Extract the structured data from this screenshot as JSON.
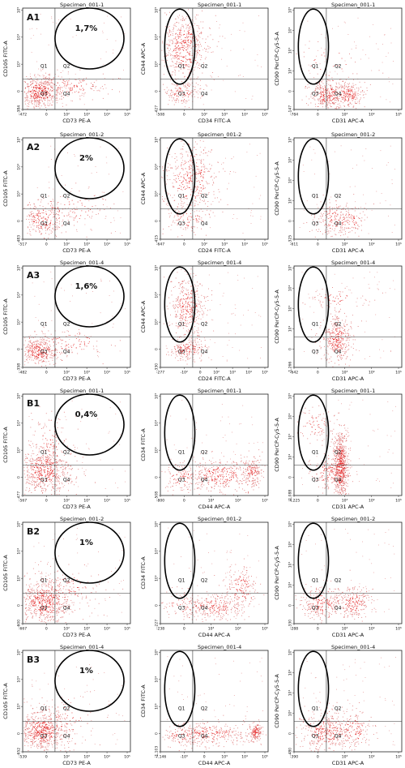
{
  "figure": {
    "row_labels": [
      "A1",
      "A2",
      "A3",
      "B1",
      "B2",
      "B3"
    ],
    "percents": [
      "1,7%",
      "2%",
      "1,6%",
      "0,4%",
      "1%",
      "1%"
    ]
  },
  "chart_data": [
    {
      "type": "scatter",
      "row": "A1",
      "col": 1,
      "title": "Specimen_001-1",
      "xlabel": "CD73 PE-A",
      "ylabel": "CD105 FITC-A",
      "quadrants": [
        "Q1",
        "Q2",
        "Q3",
        "Q4"
      ],
      "percent_label": "1,7%",
      "xticks": [
        "-472",
        "0",
        "10²",
        "10³",
        "10⁴",
        "10⁵"
      ],
      "yticks": [
        "-384",
        "0",
        "10³",
        "10⁴",
        "10⁵"
      ],
      "gate": "ellipse-upper-right",
      "populations": [
        {
          "x": 0.15,
          "y": 0.18,
          "sx": 0.1,
          "sy": 0.08,
          "n": 520
        },
        {
          "x": 0.45,
          "y": 0.23,
          "sx": 0.18,
          "sy": 0.06,
          "n": 140
        }
      ]
    },
    {
      "type": "scatter",
      "row": "A1",
      "col": 2,
      "title": "Specimen_001-1",
      "xlabel": "CD34 FITC-A",
      "ylabel": "CD44 APC-A",
      "quadrants": [
        "Q1",
        "Q2",
        "Q3",
        "Q4"
      ],
      "xticks": [
        "-508",
        "0",
        "10²",
        "10³",
        "10⁴",
        "10⁵"
      ],
      "yticks": [
        "-427",
        "0",
        "10³",
        "10⁴",
        "10⁵"
      ],
      "gate": "ellipse-upper-left",
      "populations": [
        {
          "x": 0.22,
          "y": 0.62,
          "sx": 0.11,
          "sy": 0.18,
          "n": 540
        },
        {
          "x": 0.2,
          "y": 0.16,
          "sx": 0.08,
          "sy": 0.06,
          "n": 140
        }
      ]
    },
    {
      "type": "scatter",
      "row": "A1",
      "col": 3,
      "title": "Specimen_001-1",
      "xlabel": "CD31 APC-A",
      "ylabel": "CD90 PerCP-Cy5-5-A",
      "quadrants": [
        "Q1",
        "Q2",
        "Q3",
        "Q4"
      ],
      "xticks": [
        "-784",
        "0",
        "10³",
        "10⁴",
        "10⁵"
      ],
      "yticks": [
        "-147",
        "0",
        "10²",
        "10³",
        "10⁴",
        "10⁵"
      ],
      "gate": "ellipse-upper-left",
      "populations": [
        {
          "x": 0.3,
          "y": 0.15,
          "sx": 0.08,
          "sy": 0.07,
          "n": 300
        },
        {
          "x": 0.5,
          "y": 0.15,
          "sx": 0.07,
          "sy": 0.07,
          "n": 220
        },
        {
          "x": 0.35,
          "y": 0.45,
          "sx": 0.18,
          "sy": 0.14,
          "n": 45
        }
      ]
    },
    {
      "type": "scatter",
      "row": "A2",
      "col": 1,
      "title": "Specimen_001-2",
      "xlabel": "CD73 PE-A",
      "ylabel": "CD105 FITC-A",
      "quadrants": [
        "Q1",
        "Q2",
        "Q3",
        "Q4"
      ],
      "percent_label": "2%",
      "xticks": [
        "-517",
        "0",
        "10²",
        "10³",
        "10⁴",
        "10⁵"
      ],
      "yticks": [
        "-483",
        "0",
        "10³",
        "10⁴",
        "10⁵"
      ],
      "gate": "ellipse-upper-right",
      "populations": [
        {
          "x": 0.2,
          "y": 0.2,
          "sx": 0.11,
          "sy": 0.09,
          "n": 260
        },
        {
          "x": 0.45,
          "y": 0.3,
          "sx": 0.2,
          "sy": 0.12,
          "n": 110
        }
      ]
    },
    {
      "type": "scatter",
      "row": "A2",
      "col": 2,
      "title": "Specimen_001-2",
      "xlabel": "CD24 FITC-A",
      "ylabel": "CD44 APC-A",
      "quadrants": [
        "Q1",
        "Q2",
        "Q3",
        "Q4"
      ],
      "xticks": [
        "-647",
        "0",
        "10²",
        "10³",
        "10⁴",
        "10⁵"
      ],
      "yticks": [
        "-415",
        "0",
        "10³",
        "10⁴",
        "10⁵"
      ],
      "gate": "ellipse-upper-left",
      "populations": [
        {
          "x": 0.28,
          "y": 0.6,
          "sx": 0.14,
          "sy": 0.2,
          "n": 420
        },
        {
          "x": 0.25,
          "y": 0.2,
          "sx": 0.1,
          "sy": 0.08,
          "n": 90
        }
      ]
    },
    {
      "type": "scatter",
      "row": "A2",
      "col": 3,
      "title": "Specimen_001-2",
      "xlabel": "CD31 APC-A",
      "ylabel": "CD90 PerCP-Cy5-5-A",
      "quadrants": [
        "Q1",
        "Q2",
        "Q3",
        "Q4"
      ],
      "xticks": [
        "-611",
        "0",
        "10³",
        "10⁴",
        "10⁵"
      ],
      "yticks": [
        "-325",
        "0",
        "10²",
        "10³",
        "10⁴",
        "10⁵"
      ],
      "gate": "ellipse-upper-left",
      "populations": [
        {
          "x": 0.35,
          "y": 0.2,
          "sx": 0.09,
          "sy": 0.09,
          "n": 150
        },
        {
          "x": 0.5,
          "y": 0.18,
          "sx": 0.08,
          "sy": 0.08,
          "n": 120
        }
      ]
    },
    {
      "type": "scatter",
      "row": "A3",
      "col": 1,
      "title": "Specimen_001-4",
      "xlabel": "CD73 PE-A",
      "ylabel": "CD105 FITC-A",
      "quadrants": [
        "Q1",
        "Q2",
        "Q3",
        "Q4"
      ],
      "percent_label": "1,6%",
      "xticks": [
        "-482",
        "0",
        "10²",
        "10³",
        "10⁴",
        "10⁵"
      ],
      "yticks": [
        "-358",
        "0",
        "10³",
        "10⁴",
        "10⁵"
      ],
      "gate": "ellipse-upper-right",
      "populations": [
        {
          "x": 0.15,
          "y": 0.17,
          "sx": 0.1,
          "sy": 0.07,
          "n": 380
        },
        {
          "x": 0.45,
          "y": 0.25,
          "sx": 0.2,
          "sy": 0.08,
          "n": 100
        }
      ]
    },
    {
      "type": "scatter",
      "row": "A3",
      "col": 2,
      "title": "Specimen_001-4",
      "xlabel": "CD24 FITC-A",
      "ylabel": "CD44 APC-A",
      "quadrants": [
        "Q1",
        "Q2",
        "Q3",
        "Q4"
      ],
      "xticks": [
        "-277",
        "-10²",
        "0",
        "10²",
        "10³",
        "10⁴",
        "10⁵"
      ],
      "yticks": [
        "-330",
        "0",
        "10³",
        "10⁴",
        "10⁵"
      ],
      "gate": "ellipse-upper-left",
      "populations": [
        {
          "x": 0.25,
          "y": 0.6,
          "sx": 0.09,
          "sy": 0.16,
          "n": 380
        },
        {
          "x": 0.25,
          "y": 0.18,
          "sx": 0.08,
          "sy": 0.06,
          "n": 200
        }
      ]
    },
    {
      "type": "scatter",
      "row": "A3",
      "col": 3,
      "title": "Specimen_001-4",
      "xlabel": "CD31 APC-A",
      "ylabel": "CD90 PerCP-Cy5-5-A",
      "quadrants": [
        "Q1",
        "Q2",
        "Q3",
        "Q4"
      ],
      "xticks": [
        "-642",
        "0",
        "10³",
        "10⁴",
        "10⁵"
      ],
      "yticks": [
        "-1,266",
        "0",
        "10²",
        "10³",
        "10⁴",
        "10⁵"
      ],
      "gate": "ellipse-upper-left",
      "populations": [
        {
          "x": 0.4,
          "y": 0.28,
          "sx": 0.07,
          "sy": 0.12,
          "n": 360
        },
        {
          "x": 0.4,
          "y": 0.68,
          "sx": 0.15,
          "sy": 0.05,
          "n": 70
        }
      ]
    },
    {
      "type": "scatter",
      "row": "B1",
      "col": 1,
      "title": "Specimen_001-1",
      "xlabel": "CD73 PE-A",
      "ylabel": "CD105 FITC-A",
      "quadrants": [
        "Q1",
        "Q2",
        "Q3",
        "Q4"
      ],
      "percent_label": "0,4%",
      "xticks": [
        "-567",
        "0",
        "10²",
        "10³",
        "10⁴",
        "10⁵"
      ],
      "yticks": [
        "-477",
        "0",
        "10³",
        "10⁴",
        "10⁵"
      ],
      "gate": "ellipse-upper-right",
      "populations": [
        {
          "x": 0.2,
          "y": 0.25,
          "sx": 0.13,
          "sy": 0.12,
          "n": 600
        },
        {
          "x": 0.25,
          "y": 0.5,
          "sx": 0.1,
          "sy": 0.15,
          "n": 100
        }
      ]
    },
    {
      "type": "scatter",
      "row": "B1",
      "col": 2,
      "title": "Specimen_001-1",
      "xlabel": "CD44 APC-A",
      "ylabel": "CD34 FITC-A",
      "quadrants": [
        "Q1",
        "Q2",
        "Q3",
        "Q4"
      ],
      "xticks": [
        "-800",
        "0",
        "10³",
        "10⁴",
        "10⁵"
      ],
      "yticks": [
        "-508",
        "0",
        "10³",
        "10⁴",
        "10⁵"
      ],
      "gate": "ellipse-upper-left",
      "populations": [
        {
          "x": 0.55,
          "y": 0.2,
          "sx": 0.16,
          "sy": 0.08,
          "n": 380
        },
        {
          "x": 0.85,
          "y": 0.25,
          "sx": 0.05,
          "sy": 0.08,
          "n": 150
        },
        {
          "x": 0.2,
          "y": 0.18,
          "sx": 0.1,
          "sy": 0.08,
          "n": 100
        }
      ]
    },
    {
      "type": "scatter",
      "row": "B1",
      "col": 3,
      "title": "Specimen_001-1",
      "xlabel": "CD31 APC-A",
      "ylabel": "CD90 PerCP-Cy5-5-A",
      "quadrants": [
        "Q1",
        "Q2",
        "Q3",
        "Q4"
      ],
      "xticks": [
        "-4,225",
        "0",
        "10³",
        "10⁴",
        "10⁵"
      ],
      "yticks": [
        "-1,088",
        "0",
        "10²",
        "10³",
        "10⁴",
        "10⁵"
      ],
      "gate": "ellipse-upper-left",
      "populations": [
        {
          "x": 0.43,
          "y": 0.3,
          "sx": 0.035,
          "sy": 0.18,
          "n": 650
        },
        {
          "x": 0.32,
          "y": 0.22,
          "sx": 0.08,
          "sy": 0.1,
          "n": 150
        },
        {
          "x": 0.2,
          "y": 0.7,
          "sx": 0.1,
          "sy": 0.08,
          "n": 80
        }
      ]
    },
    {
      "type": "scatter",
      "row": "B2",
      "col": 1,
      "title": "Specimen_001-2",
      "xlabel": "CD73 PE-A",
      "ylabel": "CD105 FITC-A",
      "quadrants": [
        "Q1",
        "Q2",
        "Q3",
        "Q4"
      ],
      "percent_label": "1%",
      "xticks": [
        "-667",
        "0",
        "10²",
        "10³",
        "10⁴",
        "10⁵"
      ],
      "yticks": [
        "-600",
        "0",
        "10³",
        "10⁴",
        "10⁵"
      ],
      "gate": "ellipse-upper-right",
      "populations": [
        {
          "x": 0.2,
          "y": 0.22,
          "sx": 0.13,
          "sy": 0.12,
          "n": 620
        },
        {
          "x": 0.4,
          "y": 0.35,
          "sx": 0.2,
          "sy": 0.12,
          "n": 120
        }
      ]
    },
    {
      "type": "scatter",
      "row": "B2",
      "col": 2,
      "title": "Specimen_001-2",
      "xlabel": "CD44 APC-A",
      "ylabel": "CD34 FITC-A",
      "quadrants": [
        "Q1",
        "Q2",
        "Q3",
        "Q4"
      ],
      "xticks": [
        "-238",
        "0",
        "10³",
        "10⁴",
        "10⁵"
      ],
      "yticks": [
        "-227",
        "0",
        "10³",
        "10⁴",
        "10⁵"
      ],
      "gate": "ellipse-upper-left",
      "populations": [
        {
          "x": 0.5,
          "y": 0.17,
          "sx": 0.15,
          "sy": 0.07,
          "n": 260
        },
        {
          "x": 0.75,
          "y": 0.35,
          "sx": 0.08,
          "sy": 0.12,
          "n": 160
        },
        {
          "x": 0.2,
          "y": 0.18,
          "sx": 0.1,
          "sy": 0.07,
          "n": 80
        }
      ]
    },
    {
      "type": "scatter",
      "row": "B2",
      "col": 3,
      "title": "Specimen_001-2",
      "xlabel": "CD31 APC-A",
      "ylabel": "CD90 PerCP-Cy5-5-A",
      "quadrants": [
        "Q1",
        "Q2",
        "Q3",
        "Q4"
      ],
      "xticks": [
        "-288",
        "0",
        "10³",
        "10⁴",
        "10⁵"
      ],
      "yticks": [
        "-330",
        "0",
        "10²",
        "10³",
        "10⁴",
        "10⁵"
      ],
      "gate": "ellipse-upper-left",
      "populations": [
        {
          "x": 0.25,
          "y": 0.2,
          "sx": 0.1,
          "sy": 0.08,
          "n": 260
        },
        {
          "x": 0.55,
          "y": 0.2,
          "sx": 0.08,
          "sy": 0.08,
          "n": 220
        }
      ]
    },
    {
      "type": "scatter",
      "row": "B3",
      "col": 1,
      "title": "Specimen_001-4",
      "xlabel": "CD73 PE-A",
      "ylabel": "CD105 FITC-A",
      "quadrants": [
        "Q1",
        "Q2",
        "Q3",
        "Q4"
      ],
      "percent_label": "1%",
      "xticks": [
        "-539",
        "0",
        "10²",
        "10³",
        "10⁴",
        "10⁵"
      ],
      "yticks": [
        "-652",
        "0",
        "10³",
        "10⁴",
        "10⁵"
      ],
      "gate": "ellipse-upper-right",
      "populations": [
        {
          "x": 0.18,
          "y": 0.2,
          "sx": 0.12,
          "sy": 0.1,
          "n": 620
        },
        {
          "x": 0.35,
          "y": 0.33,
          "sx": 0.2,
          "sy": 0.12,
          "n": 100
        }
      ]
    },
    {
      "type": "scatter",
      "row": "B3",
      "col": 2,
      "title": "Specimen_001-4",
      "xlabel": "CD44 APC-A",
      "ylabel": "CD34 FITC-A",
      "quadrants": [
        "Q1",
        "Q2",
        "Q3",
        "Q4"
      ],
      "xticks": [
        "-7,146",
        "-10³",
        "0",
        "10³",
        "10⁴",
        "10⁵"
      ],
      "yticks": [
        "-1,103",
        "0",
        "10³",
        "10⁴",
        "10⁵"
      ],
      "gate": "ellipse-upper-left",
      "populations": [
        {
          "x": 0.45,
          "y": 0.18,
          "sx": 0.2,
          "sy": 0.06,
          "n": 300
        },
        {
          "x": 0.88,
          "y": 0.2,
          "sx": 0.03,
          "sy": 0.05,
          "n": 140
        },
        {
          "x": 0.2,
          "y": 0.16,
          "sx": 0.1,
          "sy": 0.06,
          "n": 80
        }
      ]
    },
    {
      "type": "scatter",
      "row": "B3",
      "col": 3,
      "title": "Specimen_001-4",
      "xlabel": "CD31 APC-A",
      "ylabel": "CD90 PerCP-Cy5-5-A",
      "quadrants": [
        "Q1",
        "Q2",
        "Q3",
        "Q4"
      ],
      "xticks": [
        "-390",
        "0",
        "10³",
        "10⁴",
        "10⁵"
      ],
      "yticks": [
        "-480",
        "0",
        "10²",
        "10³",
        "10⁴",
        "10⁵"
      ],
      "gate": "ellipse-upper-left",
      "populations": [
        {
          "x": 0.3,
          "y": 0.2,
          "sx": 0.12,
          "sy": 0.1,
          "n": 380
        },
        {
          "x": 0.55,
          "y": 0.22,
          "sx": 0.1,
          "sy": 0.1,
          "n": 160
        }
      ]
    }
  ],
  "colors": {
    "dot": "#cc1f1f",
    "dense": "#e21a1a",
    "axis": "#222222",
    "gate": "#000000"
  }
}
